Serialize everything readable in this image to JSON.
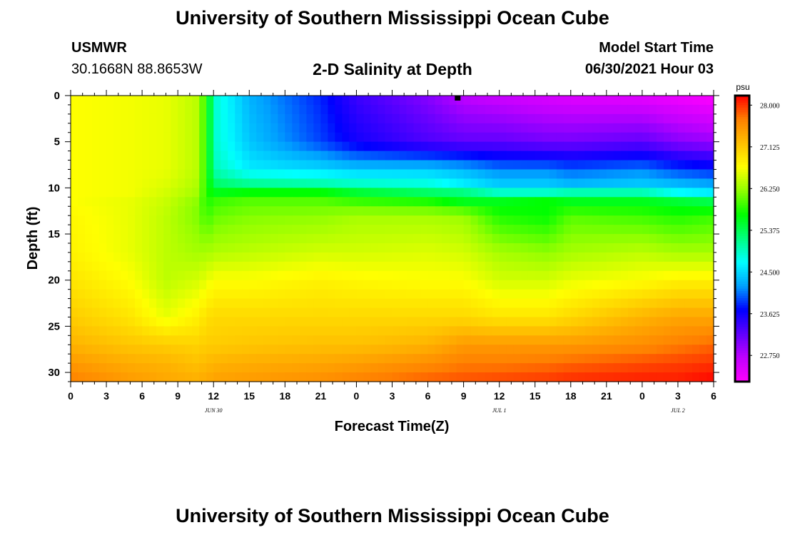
{
  "header": {
    "title": "University of Southern Mississippi Ocean Cube",
    "station_name": "USMWR",
    "station_coords": "30.1668N  88.8653W",
    "subtitle": "2-D Salinity at Depth",
    "model_start_label": "Model Start Time",
    "model_start_time": "06/30/2021 Hour 03"
  },
  "footer": {
    "title": "University of Southern Mississippi Ocean Cube"
  },
  "chart_data": {
    "type": "heatmap",
    "title": "2-D Salinity at Depth",
    "xlabel": "Forecast Time(Z)",
    "ylabel": "Depth (ft)",
    "x_ticks": [
      "0",
      "3",
      "6",
      "9",
      "12",
      "15",
      "18",
      "21",
      "0",
      "3",
      "6",
      "9",
      "12",
      "15",
      "18",
      "21",
      "0",
      "3",
      "6"
    ],
    "x_range_hours": [
      0,
      54
    ],
    "date_labels": [
      {
        "label": "JUN 30",
        "hour": 12
      },
      {
        "label": "JUL 1",
        "hour": 36
      },
      {
        "label": "JUL 2",
        "hour": 51
      }
    ],
    "y_ticks": [
      "0",
      "5",
      "10",
      "15",
      "20",
      "25",
      "30"
    ],
    "ylim_ft": [
      0,
      31
    ],
    "y_inverted": true,
    "current_time_hour": 32.5,
    "colorbar": {
      "unit": "psu",
      "ticks": [
        "28.000",
        "27.125",
        "26.250",
        "25.375",
        "24.500",
        "23.625",
        "22.750"
      ],
      "range": [
        22.2,
        28.2
      ],
      "colors": [
        "#ff00ff",
        "#c000ff",
        "#6000ff",
        "#0000ff",
        "#00a0ff",
        "#00ffff",
        "#00ff80",
        "#00ff00",
        "#90ff00",
        "#ffff00",
        "#ffc000",
        "#ff8000",
        "#ff0000"
      ]
    },
    "value_grid": {
      "description_hours": [
        0,
        5,
        8,
        10.5,
        11.5,
        12,
        15,
        21,
        24,
        30,
        33,
        36,
        40,
        42,
        48,
        51,
        54
      ],
      "depths_ft": [
        0,
        5,
        8,
        9.5,
        10.5,
        11.5,
        13,
        17,
        20,
        24,
        27,
        29,
        31
      ]
    }
  }
}
